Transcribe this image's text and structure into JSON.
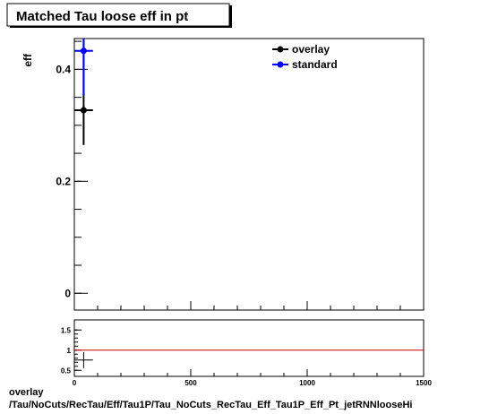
{
  "footer": {
    "line1": "overlay",
    "line2": "/Tau/NoCuts/RecTau/Eff/Tau1P/Tau_NoCuts_RecTau_Eff_Tau1P_Eff_Pt_jetRNNlooseHi"
  },
  "chart_data": [
    {
      "type": "scatter",
      "title": "Matched Tau loose eff in pt",
      "xlabel": "",
      "ylabel": "eff",
      "xlim": [
        0,
        1500
      ],
      "ylim": [
        -0.03,
        0.455
      ],
      "y_ticks": [
        0,
        0.2,
        0.4
      ],
      "y_tick_labels": [
        "0",
        "0.2",
        "0.4"
      ],
      "legend_position": "top-right",
      "series": [
        {
          "name": "overlay",
          "color": "#000000",
          "points": [
            {
              "x": 40,
              "y": 0.327,
              "xerr": 40,
              "yerr_low": 0.062,
              "yerr_high": 0.13
            }
          ]
        },
        {
          "name": "standard",
          "color": "#0000ff",
          "points": [
            {
              "x": 40,
              "y": 0.433,
              "xerr": 40,
              "yerr_low": 0.08,
              "yerr_high": 0.06
            }
          ]
        }
      ]
    },
    {
      "type": "scatter",
      "title": "",
      "xlabel": "",
      "ylabel": "",
      "xlim": [
        0,
        1500
      ],
      "ylim": [
        0.35,
        1.75
      ],
      "x_ticks": [
        0,
        500,
        1000,
        1500
      ],
      "x_tick_labels": [
        "0",
        "500",
        "1000",
        "1500"
      ],
      "y_ticks": [
        0.5,
        1,
        1.5
      ],
      "y_tick_labels": [
        "0.5",
        "1",
        "1.5"
      ],
      "reference_line": {
        "y": 1,
        "color": "#cc0000"
      },
      "series": [
        {
          "name": "",
          "color": "#000000",
          "points": [
            {
              "x": 40,
              "y": 0.755,
              "xerr": 40,
              "yerr_low": 0.2,
              "yerr_high": 0.2
            }
          ]
        }
      ]
    }
  ]
}
